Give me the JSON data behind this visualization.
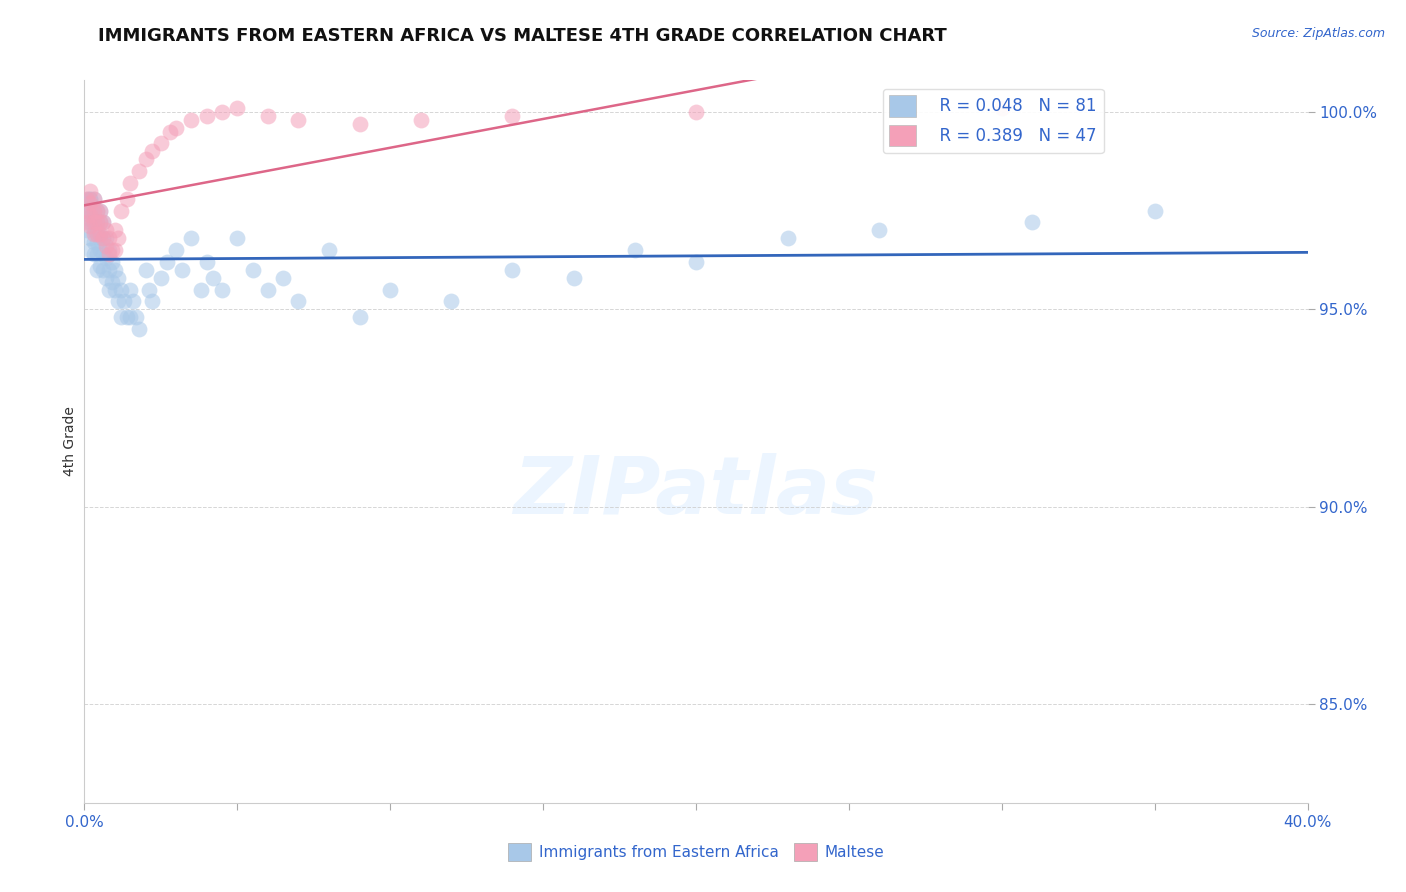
{
  "title": "IMMIGRANTS FROM EASTERN AFRICA VS MALTESE 4TH GRADE CORRELATION CHART",
  "source_text": "Source: ZipAtlas.com",
  "ylabel": "4th Grade",
  "xlim": [
    0.0,
    0.4
  ],
  "ylim": [
    0.825,
    1.008
  ],
  "legend_R_blue": "R = 0.048",
  "legend_N_blue": "N = 81",
  "legend_R_pink": "R = 0.389",
  "legend_N_pink": "N = 47",
  "blue_scatter_color": "#a8c8e8",
  "pink_scatter_color": "#f4a0b8",
  "blue_line_color": "#3366bb",
  "pink_line_color": "#dd6688",
  "text_color": "#3366cc",
  "title_color": "#111111",
  "watermark": "ZIPatlas",
  "blue_x": [
    0.001,
    0.001,
    0.001,
    0.001,
    0.002,
    0.002,
    0.002,
    0.002,
    0.002,
    0.002,
    0.003,
    0.003,
    0.003,
    0.003,
    0.003,
    0.003,
    0.004,
    0.004,
    0.004,
    0.004,
    0.004,
    0.004,
    0.005,
    0.005,
    0.005,
    0.005,
    0.005,
    0.006,
    0.006,
    0.006,
    0.006,
    0.007,
    0.007,
    0.007,
    0.008,
    0.008,
    0.008,
    0.009,
    0.009,
    0.01,
    0.01,
    0.011,
    0.011,
    0.012,
    0.012,
    0.013,
    0.014,
    0.015,
    0.015,
    0.016,
    0.017,
    0.018,
    0.02,
    0.021,
    0.022,
    0.025,
    0.027,
    0.03,
    0.032,
    0.035,
    0.038,
    0.04,
    0.042,
    0.045,
    0.05,
    0.055,
    0.06,
    0.065,
    0.07,
    0.08,
    0.09,
    0.1,
    0.12,
    0.14,
    0.16,
    0.18,
    0.2,
    0.23,
    0.26,
    0.31,
    0.35
  ],
  "blue_y": [
    0.978,
    0.975,
    0.973,
    0.97,
    0.978,
    0.975,
    0.972,
    0.968,
    0.965,
    0.978,
    0.975,
    0.972,
    0.97,
    0.967,
    0.964,
    0.978,
    0.975,
    0.972,
    0.97,
    0.967,
    0.964,
    0.96,
    0.975,
    0.972,
    0.968,
    0.965,
    0.961,
    0.972,
    0.968,
    0.964,
    0.96,
    0.968,
    0.963,
    0.958,
    0.965,
    0.96,
    0.955,
    0.962,
    0.957,
    0.96,
    0.955,
    0.958,
    0.952,
    0.955,
    0.948,
    0.952,
    0.948,
    0.955,
    0.948,
    0.952,
    0.948,
    0.945,
    0.96,
    0.955,
    0.952,
    0.958,
    0.962,
    0.965,
    0.96,
    0.968,
    0.955,
    0.962,
    0.958,
    0.955,
    0.968,
    0.96,
    0.955,
    0.958,
    0.952,
    0.965,
    0.948,
    0.955,
    0.952,
    0.96,
    0.958,
    0.965,
    0.962,
    0.968,
    0.97,
    0.972,
    0.975
  ],
  "pink_x": [
    0.001,
    0.001,
    0.001,
    0.002,
    0.002,
    0.002,
    0.002,
    0.003,
    0.003,
    0.003,
    0.003,
    0.004,
    0.004,
    0.004,
    0.005,
    0.005,
    0.005,
    0.006,
    0.006,
    0.007,
    0.007,
    0.008,
    0.008,
    0.009,
    0.01,
    0.01,
    0.011,
    0.012,
    0.014,
    0.015,
    0.018,
    0.02,
    0.022,
    0.025,
    0.028,
    0.03,
    0.035,
    0.04,
    0.045,
    0.05,
    0.06,
    0.07,
    0.09,
    0.11,
    0.14,
    0.2,
    0.3
  ],
  "pink_y": [
    0.978,
    0.975,
    0.972,
    0.98,
    0.977,
    0.974,
    0.971,
    0.978,
    0.975,
    0.972,
    0.969,
    0.975,
    0.972,
    0.969,
    0.975,
    0.972,
    0.969,
    0.972,
    0.968,
    0.97,
    0.966,
    0.968,
    0.964,
    0.965,
    0.97,
    0.965,
    0.968,
    0.975,
    0.978,
    0.982,
    0.985,
    0.988,
    0.99,
    0.992,
    0.995,
    0.996,
    0.998,
    0.999,
    1.0,
    1.001,
    0.999,
    0.998,
    0.997,
    0.998,
    0.999,
    1.0,
    1.001
  ]
}
